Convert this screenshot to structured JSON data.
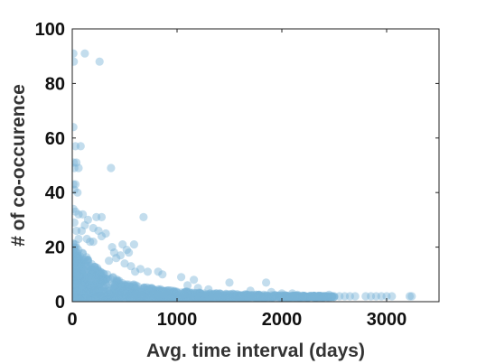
{
  "chart_data": {
    "type": "scatter",
    "title": "",
    "xlabel": "Avg. time interval (days)",
    "ylabel": "# of co-occurence",
    "xlim": [
      0,
      3500
    ],
    "ylim": [
      0,
      100
    ],
    "xticks": [
      0,
      1000,
      2000,
      3000
    ],
    "yticks": [
      0,
      20,
      40,
      60,
      80,
      100
    ],
    "grid": false,
    "marker_color": "#7ab3d6",
    "marker_alpha": 0.45,
    "series": [
      {
        "points": [
          [
            10,
            91
          ],
          [
            120,
            91
          ],
          [
            15,
            88
          ],
          [
            260,
            88
          ],
          [
            10,
            64
          ],
          [
            30,
            57
          ],
          [
            80,
            57
          ],
          [
            15,
            51
          ],
          [
            40,
            51
          ],
          [
            20,
            49
          ],
          [
            60,
            49
          ],
          [
            370,
            49
          ],
          [
            10,
            43
          ],
          [
            30,
            43
          ],
          [
            20,
            41
          ],
          [
            50,
            40
          ],
          [
            10,
            34
          ],
          [
            30,
            33
          ],
          [
            60,
            32
          ],
          [
            100,
            32
          ],
          [
            150,
            30
          ],
          [
            230,
            31
          ],
          [
            280,
            31
          ],
          [
            680,
            31
          ],
          [
            20,
            29
          ],
          [
            120,
            28
          ],
          [
            200,
            27
          ],
          [
            40,
            26
          ],
          [
            90,
            26
          ],
          [
            250,
            26
          ],
          [
            320,
            25
          ],
          [
            280,
            24
          ],
          [
            60,
            23
          ],
          [
            140,
            23
          ],
          [
            170,
            22
          ],
          [
            200,
            22
          ],
          [
            30,
            21
          ],
          [
            480,
            21
          ],
          [
            590,
            21
          ],
          [
            380,
            20
          ],
          [
            400,
            18
          ],
          [
            460,
            17
          ],
          [
            520,
            19
          ],
          [
            540,
            18
          ],
          [
            420,
            16
          ],
          [
            350,
            15
          ],
          [
            500,
            14
          ],
          [
            560,
            13
          ],
          [
            650,
            12
          ],
          [
            600,
            11
          ],
          [
            720,
            11
          ],
          [
            820,
            11
          ],
          [
            860,
            10
          ],
          [
            1040,
            9
          ],
          [
            1160,
            8
          ],
          [
            1100,
            6
          ],
          [
            1200,
            5
          ],
          [
            1300,
            4.5
          ],
          [
            1500,
            7
          ],
          [
            1700,
            4
          ],
          [
            1850,
            7
          ],
          [
            1900,
            3.5
          ],
          [
            2000,
            3
          ],
          [
            2100,
            3
          ],
          [
            2150,
            2.5
          ],
          [
            2200,
            2
          ],
          [
            2300,
            2
          ],
          [
            2350,
            2
          ],
          [
            2400,
            2
          ],
          [
            2450,
            2.5
          ],
          [
            2500,
            2
          ],
          [
            2550,
            2
          ],
          [
            2600,
            2
          ],
          [
            2650,
            2
          ],
          [
            2700,
            2
          ],
          [
            2800,
            2
          ],
          [
            2850,
            2
          ],
          [
            2900,
            2
          ],
          [
            2950,
            2
          ],
          [
            3000,
            2
          ],
          [
            3050,
            2
          ],
          [
            3220,
            2
          ],
          [
            3240,
            2
          ]
        ],
        "dense_band": {
          "x": [
            0,
            250,
            500,
            750,
            1000,
            1250,
            1500,
            1750,
            2000,
            2250,
            2500
          ],
          "y_upper": [
            22,
            12,
            7,
            5,
            4,
            3.2,
            3,
            2.6,
            2.4,
            2.2,
            2.1
          ],
          "y_lower": [
            0.5,
            0.7,
            0.9,
            1.0,
            1.1,
            1.2,
            1.3,
            1.4,
            1.5,
            1.6,
            1.7
          ]
        }
      }
    ]
  }
}
